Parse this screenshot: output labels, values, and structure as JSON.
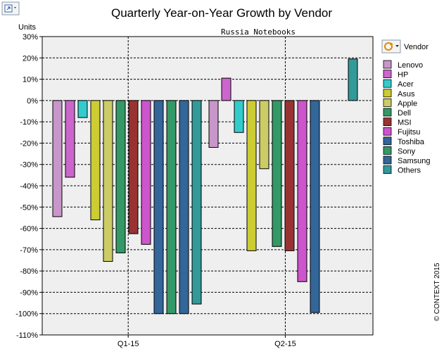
{
  "toolbar": {
    "export_icon": "export-chart-icon",
    "legend_menu_icon": "refresh-dropdown-icon"
  },
  "chart_data": {
    "type": "bar",
    "title": "Quarterly Year-on-Year Growth by Vendor",
    "subtitle": "Russia  Notebooks",
    "ylabel": "Units",
    "xlabel": "",
    "ylim": [
      -110,
      30
    ],
    "yticks": [
      30,
      20,
      10,
      0,
      -10,
      -20,
      -30,
      -40,
      -50,
      -60,
      -70,
      -80,
      -90,
      -100,
      -110
    ],
    "ytick_labels": [
      "30%",
      "20%",
      "10%",
      "0%",
      "-10%",
      "-20%",
      "-30%",
      "-40%",
      "-50%",
      "-60%",
      "-70%",
      "-80%",
      "-90%",
      "-100%",
      "-110%"
    ],
    "categories": [
      "Q1-15",
      "Q2-15"
    ],
    "grid": true,
    "legend_title": "Vendor",
    "legend_position": "right",
    "copyright": "© CONTEXT 2015",
    "series": [
      {
        "name": "Lenovo",
        "color": "#c896c8",
        "values": [
          -54.5,
          -22
        ]
      },
      {
        "name": "HP",
        "color": "#cc66cc",
        "values": [
          -36,
          10.5
        ]
      },
      {
        "name": "Acer",
        "color": "#33cccc",
        "values": [
          -8,
          -15
        ]
      },
      {
        "name": "Asus",
        "color": "#cccc33",
        "values": [
          -56,
          -70.5
        ]
      },
      {
        "name": "Apple",
        "color": "#cccc66",
        "values": [
          -75.5,
          -32
        ]
      },
      {
        "name": "Dell",
        "color": "#339966",
        "values": [
          -71.5,
          -68.5
        ]
      },
      {
        "name": "MSI",
        "color": "#993333",
        "values": [
          -62.5,
          -70.5
        ]
      },
      {
        "name": "Fujitsu",
        "color": "#cc55cc",
        "values": [
          -67.5,
          -85
        ]
      },
      {
        "name": "Toshiba",
        "color": "#336699",
        "values": [
          -100,
          -99.5
        ]
      },
      {
        "name": "Sony",
        "color": "#339966",
        "values": [
          -100,
          null
        ]
      },
      {
        "name": "Samsung",
        "color": "#336699",
        "values": [
          -100,
          null
        ]
      },
      {
        "name": "Others",
        "color": "#339999",
        "values": [
          -95.5,
          19.5
        ]
      }
    ]
  }
}
